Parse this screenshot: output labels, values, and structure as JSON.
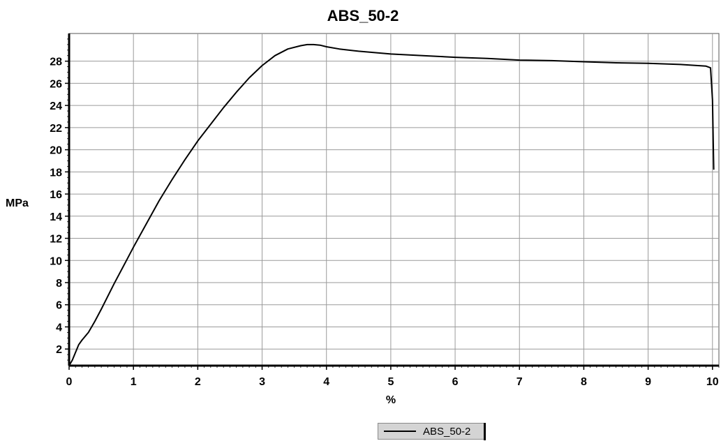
{
  "chart_data": {
    "type": "line",
    "title": "ABS_50-2",
    "xlabel": "%",
    "ylabel": "MPa",
    "xlim": [
      0,
      10.1
    ],
    "ylim": [
      0.5,
      30.5
    ],
    "x_ticks": [
      0,
      1,
      2,
      3,
      4,
      5,
      6,
      7,
      8,
      9,
      10
    ],
    "y_ticks": [
      2,
      4,
      6,
      8,
      10,
      12,
      14,
      16,
      18,
      20,
      22,
      24,
      26,
      28
    ],
    "grid": true,
    "legend_position": "bottom-center",
    "series": [
      {
        "name": "ABS_50-2",
        "color": "#000000",
        "x": [
          0,
          0.05,
          0.1,
          0.15,
          0.2,
          0.3,
          0.4,
          0.5,
          0.7,
          0.9,
          1.0,
          1.2,
          1.4,
          1.6,
          1.8,
          2.0,
          2.2,
          2.4,
          2.6,
          2.8,
          3.0,
          3.2,
          3.4,
          3.6,
          3.7,
          3.8,
          3.9,
          4.0,
          4.2,
          4.5,
          5.0,
          5.5,
          6.0,
          6.5,
          7.0,
          7.5,
          8.0,
          8.5,
          9.0,
          9.5,
          9.9,
          9.97,
          10.0,
          10.02
        ],
        "y": [
          0.5,
          1.0,
          1.7,
          2.4,
          2.8,
          3.5,
          4.5,
          5.6,
          7.9,
          10.1,
          11.2,
          13.3,
          15.4,
          17.3,
          19.1,
          20.8,
          22.3,
          23.8,
          25.2,
          26.5,
          27.6,
          28.5,
          29.1,
          29.4,
          29.5,
          29.5,
          29.45,
          29.3,
          29.1,
          28.9,
          28.65,
          28.5,
          28.35,
          28.25,
          28.1,
          28.05,
          27.95,
          27.85,
          27.8,
          27.7,
          27.55,
          27.4,
          24.5,
          18.2
        ]
      }
    ]
  }
}
